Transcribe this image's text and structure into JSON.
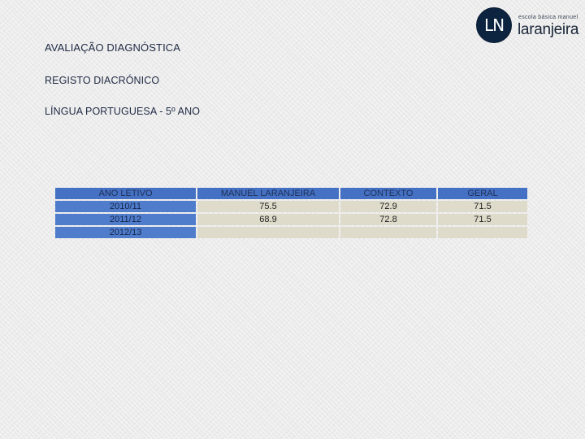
{
  "header": {
    "title": "AVALIAÇÃO DIAGNÓSTICA",
    "subtitle": "REGISTO DIACRÓNICO",
    "subject": "LÍNGUA PORTUGUESA - 5º ANO"
  },
  "logo": {
    "monogram": "LN",
    "small_text": "escola básica manuel",
    "big_text": "laranjeira"
  },
  "table": {
    "headers": [
      "ANO LETIVO",
      "MANUEL LARANJEIRA",
      "CONTEXTO",
      "GERAL"
    ],
    "rows": [
      {
        "year": "2010/11",
        "manuel": "75.5",
        "contexto": "72.9",
        "geral": "71.5"
      },
      {
        "year": "2011/12",
        "manuel": "68.9",
        "contexto": "72.8",
        "geral": "71.5"
      },
      {
        "year": "2012/13",
        "manuel": "",
        "contexto": "",
        "geral": ""
      }
    ]
  },
  "colors": {
    "header_bg": "#4571c4",
    "row_bg": "#dfdbcb",
    "logo_bg": "#0d2440"
  }
}
